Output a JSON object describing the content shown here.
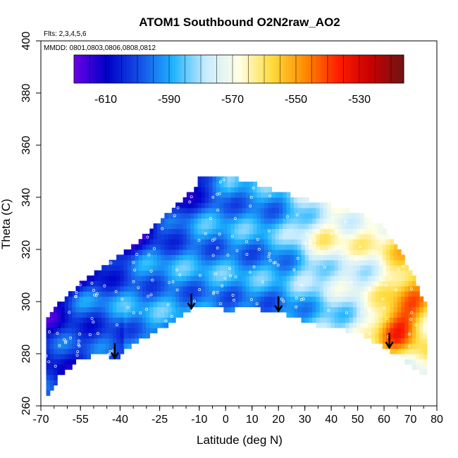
{
  "chart_data": {
    "type": "heatmap",
    "title": "ATOM1 Southbound O2N2raw_AO2",
    "notes": [
      "Flts: 2,3,4,5,6",
      "MMDD: 0801,0803,0806,0808,0812"
    ],
    "xlabel": "Latitude (deg N)",
    "ylabel": "Theta (C)",
    "xlim": [
      -70,
      80
    ],
    "ylim": [
      260,
      400
    ],
    "x_tick_labels": [
      "-70",
      "-55",
      "-40",
      "-25",
      "-10",
      "0",
      "10",
      "20",
      "30",
      "40",
      "50",
      "60",
      "70",
      "80"
    ],
    "x_tick_values": [
      -70,
      -55,
      -40,
      -25,
      -10,
      0,
      10,
      20,
      30,
      40,
      50,
      60,
      70,
      80
    ],
    "y_ticks": [
      260,
      280,
      300,
      320,
      340,
      360,
      380,
      400
    ],
    "colorbar": {
      "range": [
        -620,
        -516
      ],
      "ticks": [
        -610,
        -590,
        -570,
        -550,
        -530
      ],
      "tick_labels": [
        "-610",
        "-590",
        "-570",
        "-550",
        "-530"
      ]
    },
    "arrows": [
      {
        "lat": -42,
        "theta": 284
      },
      {
        "lat": -13,
        "theta": 303
      },
      {
        "lat": 20,
        "theta": 302
      },
      {
        "lat": 62,
        "theta": 288
      }
    ],
    "colors": {
      "palette": [
        "#6a00e8",
        "#0000c8",
        "#1450e6",
        "#1eb4ff",
        "#c8ebff",
        "#ffffe6",
        "#ffdc3c",
        "#ff8c00",
        "#ff1e00",
        "#c80000",
        "#6e1414"
      ]
    }
  }
}
